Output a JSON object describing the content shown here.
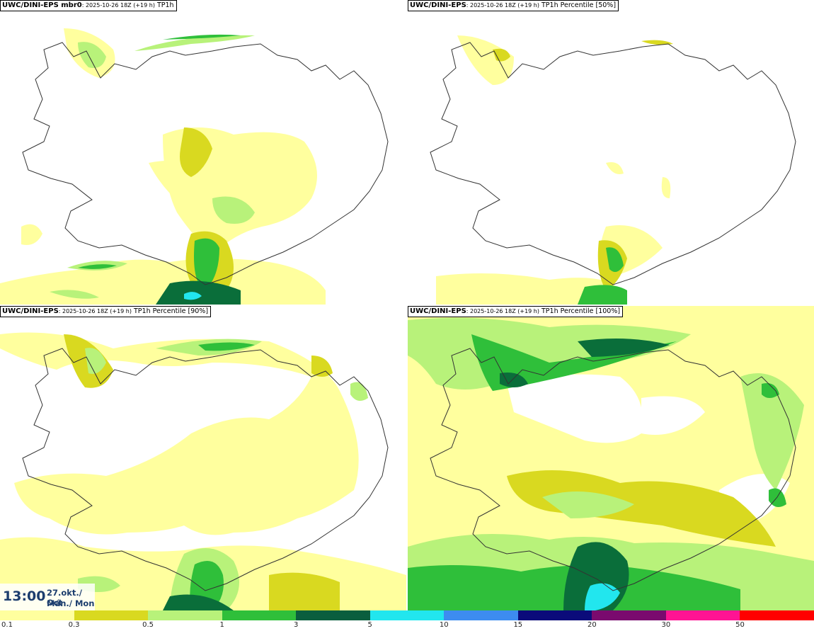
{
  "panels": [
    {
      "id": "p1",
      "model": "UWC/DINI-EPS",
      "member": " mbr0",
      "run": ": 2025-10-26 18Z (+19 h)",
      "param": " TP1h"
    },
    {
      "id": "p2",
      "model": "UWC/DINI-EPS",
      "member": "",
      "run": ": 2025-10-26 18Z (+19 h)",
      "param": " TP1h Percentile [50%]"
    },
    {
      "id": "p3",
      "model": "UWC/DINI-EPS",
      "member": "",
      "run": ": 2025-10-26 18Z (+19 h)",
      "param": " TP1h Percentile [90%]"
    },
    {
      "id": "p4",
      "model": "UWC/DINI-EPS",
      "member": "",
      "run": ": 2025-10-26 18Z (+19 h)",
      "param": " TP1h Percentile [100%]"
    }
  ],
  "valid_time": {
    "time": "13:00",
    "date": "27.okt./ Oct",
    "weekday": "Mán./ Mon"
  },
  "legend": {
    "colors": [
      "#ffff9e",
      "#d9d920",
      "#b8f27a",
      "#2fbf3a",
      "#0a9a2e",
      "#0a5e3e",
      "#22e6ee",
      "#3d8cf0",
      "#1a3ddb",
      "#0b0b7a",
      "#7a0a6e",
      "#b2109a",
      "#ff1493",
      "#ff2a4a",
      "#ff0000"
    ],
    "labels": [
      {
        "text": "0.1",
        "at": 0
      },
      {
        "text": "0.3",
        "at": 2
      },
      {
        "text": "0.5",
        "at": 4
      },
      {
        "text": "1",
        "at": 6
      },
      {
        "text": "3",
        "at": 8
      },
      {
        "text": "5",
        "at": 10
      },
      {
        "text": "10",
        "at": 12
      },
      {
        "text": "15",
        "at": 14
      },
      {
        "text": "20",
        "at": 16
      },
      {
        "text": "30",
        "at": 18
      },
      {
        "text": "50",
        "at": 20
      }
    ]
  },
  "colors": {
    "yellow_light": "#ffff9e",
    "olive": "#d9d920",
    "light_green": "#b8f27a",
    "green": "#2fbf3a",
    "dark_green": "#0a6e3a",
    "cyan": "#22e6ee",
    "time_text": "#1c3d6e"
  }
}
